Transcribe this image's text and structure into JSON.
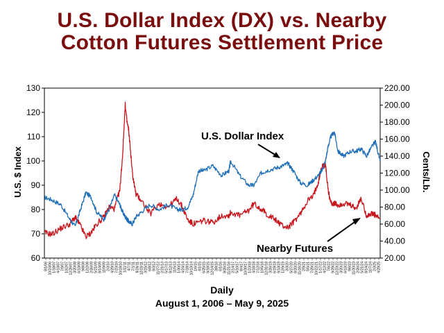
{
  "chart_data": {
    "type": "line",
    "title_line1": "U.S. Dollar Index (DX) vs. Nearby",
    "title_line2": "Cotton Futures Settlement Price",
    "xlabel": "Daily",
    "xlabel_range": "August 1, 2006 – May 9, 2025",
    "ylabel_left": "U.S. $ Index",
    "ylabel_right": "Cents/Lb.",
    "ylim_left": [
      60,
      130
    ],
    "ylim_right": [
      20,
      220
    ],
    "yticks_left": [
      "60",
      "70",
      "80",
      "90",
      "100",
      "110",
      "120",
      "130"
    ],
    "yticks_right": [
      "20.00",
      "40.00",
      "60.00",
      "80.00",
      "100.00",
      "120.00",
      "140.00",
      "160.00",
      "180.00",
      "200.00",
      "220.00"
    ],
    "x_tick_labels": [
      "8/1/06",
      "10/24/06",
      "1/18/07",
      "4/13/07",
      "7/9/07",
      "10/2/07",
      "12/26/07",
      "3/20/08",
      "6/13/08",
      "9/8/08",
      "12/2/08",
      "2/26/09",
      "5/21/09",
      "8/14/09",
      "11/9/09",
      "2/3/10",
      "4/29/10",
      "7/23/10",
      "10/18/10",
      "1/11/11",
      "4/7/11",
      "7/1/11",
      "9/26/11",
      "12/20/11",
      "3/15/12",
      "6/8/12",
      "9/3/12",
      "11/27/12",
      "2/21/13",
      "5/17/13",
      "8/12/13",
      "11/5/13",
      "1/30/14",
      "4/24/14",
      "7/18/14",
      "10/13/14",
      "1/6/15",
      "4/1/15",
      "6/25/15",
      "9/18/15",
      "12/14/15",
      "3/8/16",
      "6/1/16",
      "8/26/16",
      "11/21/16",
      "2/14/17",
      "5/10/17",
      "8/4/17",
      "10/30/17",
      "1/23/18",
      "4/18/18",
      "7/12/18",
      "10/5/18",
      "12/31/18",
      "3/26/19",
      "6/19/19",
      "9/13/19",
      "12/9/19",
      "3/3/20",
      "5/27/20",
      "8/20/20",
      "11/16/20",
      "2/9/21",
      "5/5/21",
      "7/29/21",
      "10/22/21",
      "1/17/22",
      "4/12/22",
      "7/6/22",
      "9/29/22",
      "12/23/22",
      "3/20/23",
      "6/13/23",
      "9/6/23",
      "11/30/23",
      "2/26/24",
      "5/21/24",
      "8/14/24",
      "11/7/24",
      "2/3/25",
      "4/29/25"
    ],
    "x": [
      2006.58,
      2007.0,
      2007.5,
      2008.0,
      2008.3,
      2008.6,
      2008.9,
      2009.2,
      2009.5,
      2009.9,
      2010.2,
      2010.5,
      2010.8,
      2010.95,
      2011.1,
      2011.2,
      2011.3,
      2011.5,
      2011.7,
      2012.0,
      2012.5,
      2013.0,
      2013.5,
      2014.0,
      2014.3,
      2014.6,
      2014.9,
      2015.2,
      2015.5,
      2016.0,
      2016.5,
      2016.9,
      2017.0,
      2017.5,
      2018.0,
      2018.3,
      2018.7,
      2019.0,
      2019.5,
      2019.9,
      2020.2,
      2020.5,
      2020.9,
      2021.3,
      2021.6,
      2021.9,
      2022.1,
      2022.3,
      2022.45,
      2022.6,
      2022.8,
      2023.0,
      2023.3,
      2023.7,
      2024.0,
      2024.3,
      2024.6,
      2024.9,
      2025.1,
      2025.35
    ],
    "series": [
      {
        "name": "U.S. Dollar Index",
        "axis": "left",
        "color": "#1f6fb8",
        "values": [
          85,
          84,
          82,
          76,
          73,
          80,
          87,
          85,
          79,
          76,
          80,
          86,
          82,
          79,
          77,
          76,
          75,
          74,
          77,
          79,
          82,
          80,
          82,
          80,
          80,
          81,
          86,
          96,
          96,
          98,
          94,
          96,
          100,
          94,
          90,
          90,
          95,
          96,
          97,
          98,
          99,
          96,
          91,
          90,
          92,
          94,
          96,
          100,
          106,
          110,
          112,
          104,
          102,
          104,
          104,
          105,
          102,
          106,
          108,
          100
        ]
      },
      {
        "name": "Nearby Futures",
        "axis": "right",
        "color": "#c8161d",
        "values": [
          50,
          48,
          55,
          60,
          68,
          58,
          45,
          50,
          60,
          68,
          80,
          78,
          100,
          140,
          200,
          180,
          170,
          120,
          95,
          88,
          72,
          84,
          80,
          90,
          80,
          65,
          60,
          62,
          64,
          62,
          70,
          70,
          74,
          70,
          76,
          84,
          78,
          72,
          65,
          58,
          56,
          62,
          72,
          88,
          92,
          110,
          128,
          130,
          100,
          85,
          84,
          82,
          84,
          82,
          78,
          90,
          70,
          72,
          70,
          66
        ]
      }
    ],
    "annotations": [
      "U.S. Dollar Index",
      "Nearby Futures"
    ],
    "grid": false,
    "legend": "none"
  }
}
